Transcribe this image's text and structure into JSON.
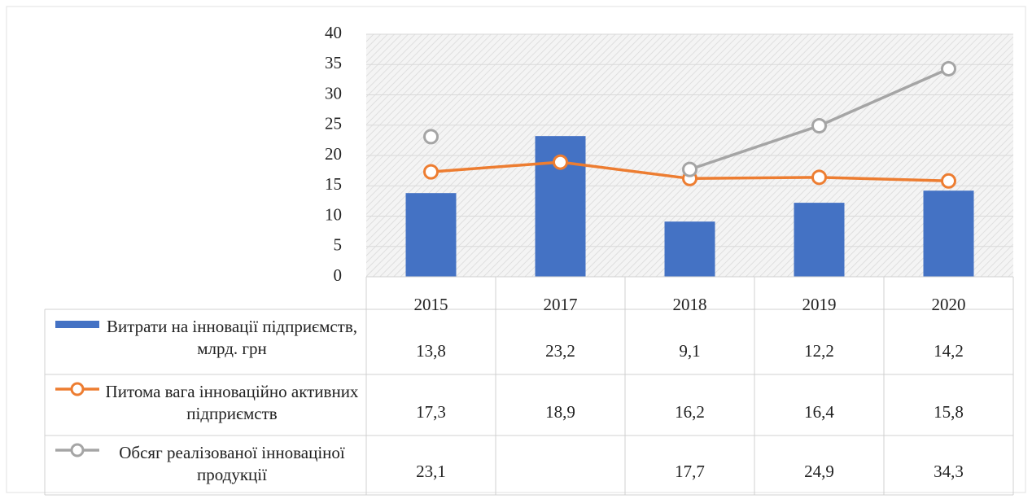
{
  "chart_data": {
    "type": "bar",
    "categories": [
      "2015",
      "2017",
      "2018",
      "2019",
      "2020"
    ],
    "series": [
      {
        "name": "Витрати на інновації підприємств, млрд. грн",
        "type": "bar",
        "color": "#4472c4",
        "values": [
          13.8,
          23.2,
          9.1,
          12.2,
          14.2
        ],
        "value_labels": [
          "13,8",
          "23,2",
          "9,1",
          "12,2",
          "14,2"
        ]
      },
      {
        "name": "Питома вага інноваційно активних підприємств",
        "type": "line",
        "color": "#ed7d31",
        "values": [
          17.3,
          18.9,
          16.2,
          16.4,
          15.8
        ],
        "value_labels": [
          "17,3",
          "18,9",
          "16,2",
          "16,4",
          "15,8"
        ]
      },
      {
        "name": "Обсяг реалізованої інноваціної продукції",
        "type": "line",
        "color": "#a5a5a5",
        "values": [
          23.1,
          null,
          17.7,
          24.9,
          34.3
        ],
        "value_labels": [
          "23,1",
          null,
          "17,7",
          "24,9",
          "34,3"
        ]
      }
    ],
    "ylim": [
      0,
      40
    ],
    "yticks": [
      0,
      5,
      10,
      15,
      20,
      25,
      30,
      35,
      40
    ],
    "grid": true,
    "data_table": true
  }
}
